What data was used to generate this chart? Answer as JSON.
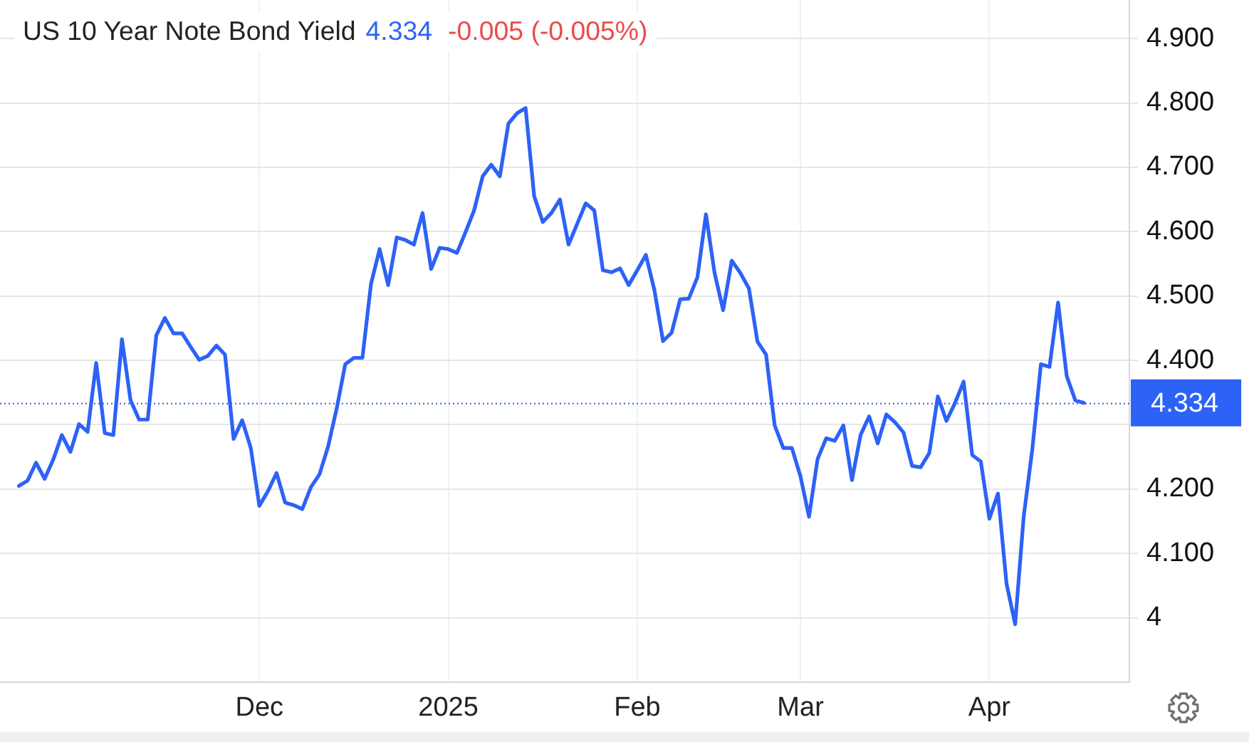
{
  "chart_data": {
    "type": "line",
    "title": "US 10 Year Note Bond Yield",
    "annotations": [
      "4.334",
      "-0.005 (-0.005%)"
    ],
    "categories": [
      null,
      null,
      null,
      null,
      null,
      null,
      null,
      null,
      null,
      null,
      null,
      null,
      null,
      null,
      null,
      null,
      null,
      null,
      null,
      null,
      null,
      null,
      null,
      null,
      null,
      null,
      null,
      null,
      "Dec",
      null,
      null,
      null,
      null,
      null,
      null,
      null,
      null,
      null,
      null,
      null,
      null,
      null,
      null,
      null,
      null,
      null,
      null,
      null,
      null,
      null,
      "2025",
      null,
      null,
      null,
      null,
      null,
      null,
      null,
      null,
      null,
      null,
      null,
      null,
      null,
      null,
      null,
      null,
      null,
      null,
      null,
      null,
      null,
      "Feb",
      null,
      null,
      null,
      null,
      null,
      null,
      null,
      null,
      null,
      null,
      null,
      null,
      null,
      null,
      null,
      null,
      null,
      null,
      "Mar",
      null,
      null,
      null,
      null,
      null,
      null,
      null,
      null,
      null,
      null,
      null,
      null,
      null,
      null,
      null,
      null,
      null,
      null,
      null,
      null,
      null,
      "Apr",
      null,
      null,
      null,
      null,
      null,
      null,
      null,
      null,
      null,
      null,
      null
    ],
    "series": [
      {
        "color": "#2d62f7",
        "values": [
          4.205,
          4.213,
          4.241,
          4.216,
          4.246,
          4.284,
          4.258,
          4.301,
          4.289,
          4.396,
          4.287,
          4.284,
          4.433,
          4.338,
          4.308,
          4.308,
          4.439,
          4.466,
          4.442,
          4.442,
          4.421,
          4.401,
          4.407,
          4.423,
          4.409,
          4.278,
          4.307,
          4.264,
          4.174,
          4.197,
          4.225,
          4.179,
          4.175,
          4.169,
          4.203,
          4.223,
          4.266,
          4.325,
          4.394,
          4.404,
          4.404,
          4.519,
          4.573,
          4.517,
          4.591,
          4.587,
          4.58,
          4.629,
          4.542,
          4.575,
          4.573,
          4.567,
          4.599,
          4.633,
          4.686,
          4.704,
          4.686,
          4.768,
          4.784,
          4.792,
          4.655,
          4.615,
          4.629,
          4.65,
          4.58,
          4.612,
          4.644,
          4.633,
          4.54,
          4.537,
          4.543,
          4.517,
          4.54,
          4.564,
          4.509,
          4.43,
          4.443,
          4.495,
          4.496,
          4.529,
          4.627,
          4.536,
          4.478,
          4.555,
          4.536,
          4.512,
          4.429,
          4.409,
          4.299,
          4.264,
          4.264,
          4.22,
          4.157,
          4.247,
          4.279,
          4.275,
          4.299,
          4.214,
          4.284,
          4.313,
          4.271,
          4.316,
          4.304,
          4.288,
          4.236,
          4.234,
          4.256,
          4.344,
          4.306,
          4.334,
          4.367,
          4.253,
          4.243,
          4.154,
          4.193,
          4.053,
          3.99,
          4.158,
          4.262,
          4.394,
          4.39,
          4.49,
          4.376,
          4.338,
          4.334
        ]
      }
    ],
    "ylim": [
      3.9,
      4.96
    ],
    "yticks": [
      4,
      {
        "value": 4.1,
        "label": "4.100"
      },
      {
        "value": 4.2,
        "label": "4.200"
      },
      {
        "value": 4.3,
        "label": null
      },
      {
        "value": 4.4,
        "label": "4.400"
      },
      {
        "value": 4.5,
        "label": "4.500"
      },
      {
        "value": 4.6,
        "label": "4.600"
      },
      {
        "value": 4.7,
        "label": "4.700"
      },
      {
        "value": 4.8,
        "label": "4.800"
      },
      {
        "value": 4.9,
        "label": "4.900"
      }
    ],
    "ref_lines": [
      {
        "axis": "y",
        "value": 4.334,
        "label": "4.334",
        "color": "#2d62f7",
        "line_style": "dotted"
      }
    ],
    "grid": true,
    "marker": "none"
  }
}
